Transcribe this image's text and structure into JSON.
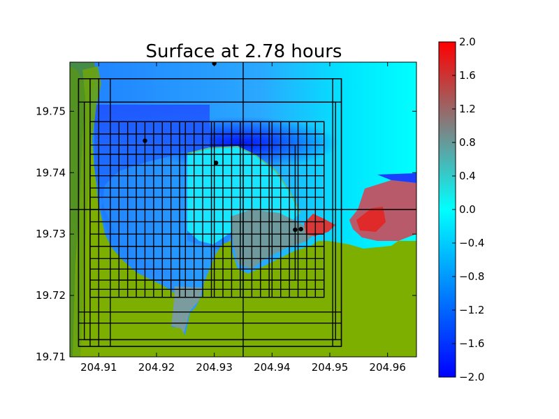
{
  "chart_data": {
    "type": "heatmap",
    "title": "Surface at 2.78 hours",
    "xlabel": "",
    "ylabel": "",
    "xlim": [
      204.905,
      204.965
    ],
    "ylim": [
      19.71,
      19.758
    ],
    "x_ticks": [
      204.91,
      204.92,
      204.93,
      204.94,
      204.95,
      204.96
    ],
    "x_tick_labels": [
      "204.91",
      "204.92",
      "204.93",
      "204.94",
      "204.95",
      "204.96"
    ],
    "y_ticks": [
      19.71,
      19.72,
      19.73,
      19.74,
      19.75
    ],
    "y_tick_labels": [
      "19.71",
      "19.72",
      "19.73",
      "19.74",
      "19.75"
    ],
    "colorbar": {
      "vmin": -2.0,
      "vmax": 2.0,
      "ticks": [
        2.0,
        1.6,
        1.2,
        0.8,
        0.4,
        0.0,
        -0.4,
        -0.8,
        -1.2,
        -1.6,
        -2.0
      ],
      "tick_labels": [
        "2.0",
        "1.6",
        "1.2",
        "0.8",
        "0.4",
        "0.0",
        "−0.4",
        "−0.8",
        "−1.2",
        "−1.6",
        "−2.0"
      ],
      "colors": [
        "#0000ff",
        "#00ffff",
        "#ff0000"
      ]
    },
    "land_color": "#7caf00",
    "land_dark_color": "#4e8d28",
    "gauges": [
      {
        "x": 204.93,
        "y": 19.7578
      },
      {
        "x": 204.918,
        "y": 19.7452
      },
      {
        "x": 204.9303,
        "y": 19.7416
      },
      {
        "x": 204.944,
        "y": 19.7307
      },
      {
        "x": 204.945,
        "y": 19.7308
      }
    ],
    "patch_edges_x": [
      204.9065,
      204.9085,
      204.91,
      204.912,
      204.9135,
      204.915,
      204.9165,
      204.918,
      204.9195,
      204.921,
      204.9225,
      204.924,
      204.925,
      204.9265,
      204.928,
      204.9295,
      204.93,
      204.9315,
      204.933,
      204.9345,
      204.935,
      204.9365,
      204.938,
      204.9395,
      204.94,
      204.9415,
      204.943,
      204.9445,
      204.946,
      204.9475,
      204.949,
      204.9505,
      204.952
    ],
    "patch_edges_y": [
      19.7117,
      19.7128,
      19.7155,
      19.7173,
      19.7197,
      19.721,
      19.7225,
      19.7243,
      19.726,
      19.728,
      19.73,
      19.732,
      19.734,
      19.736,
      19.7375,
      19.7395,
      19.7412,
      19.743,
      19.7445,
      19.7463,
      19.7483,
      19.7515,
      19.7553
    ],
    "patches": [
      {
        "x0": 204.9065,
        "x1": 204.952,
        "y0": 19.7117,
        "y1": 19.7553
      },
      {
        "x0": 204.9075,
        "x1": 204.951,
        "y0": 19.7128,
        "y1": 19.7515
      },
      {
        "x0": 204.9085,
        "x1": 204.949,
        "y0": 19.7197,
        "y1": 19.7483
      },
      {
        "x0": 204.9135,
        "x1": 204.944,
        "y0": 19.7225,
        "y1": 19.7445
      }
    ],
    "domain_lines": {
      "x": 204.935,
      "y": 19.734
    }
  }
}
